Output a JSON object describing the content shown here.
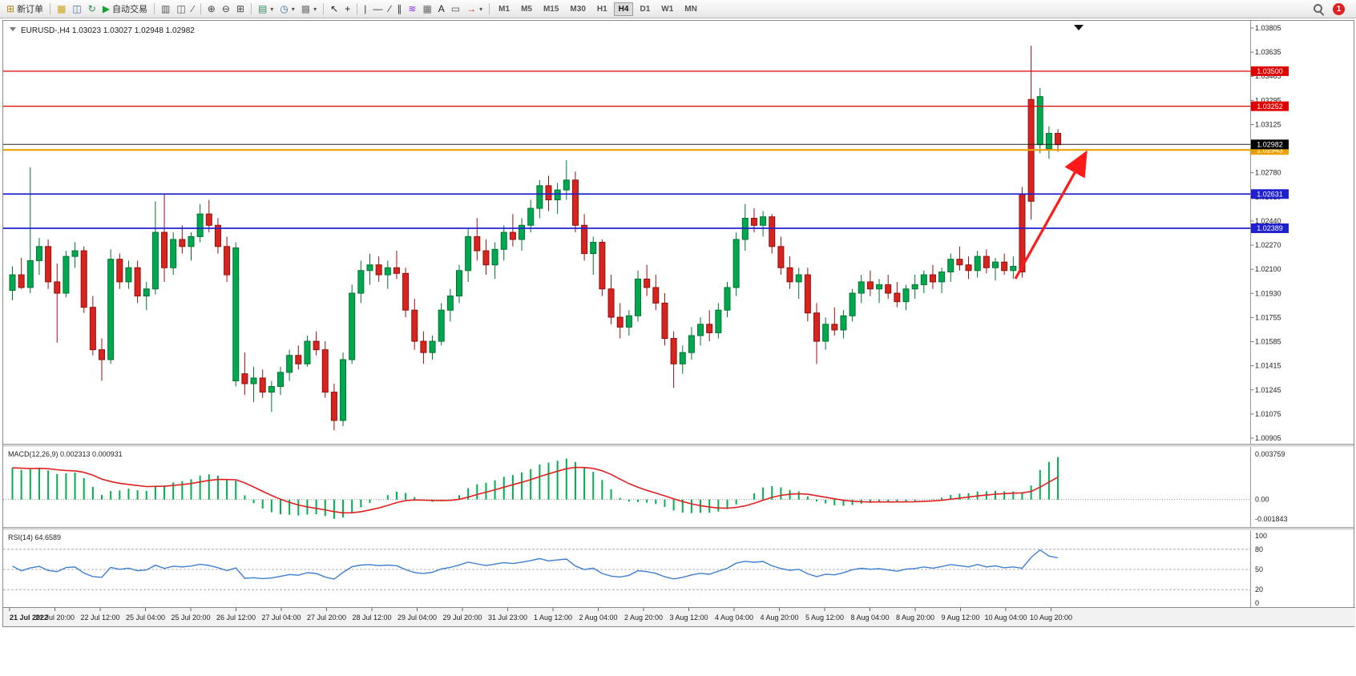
{
  "toolbar": {
    "new_order_label": "新订单",
    "auto_trading_label": "自动交易",
    "notification_count": "1",
    "timeframes": [
      "M1",
      "M5",
      "M15",
      "M30",
      "H1",
      "H4",
      "D1",
      "W1",
      "MN"
    ],
    "active_timeframe": "H4",
    "items": [
      {
        "name": "new-order-button",
        "glyph": "⊞",
        "glyph_color": "#b8860b",
        "label": "新订单"
      },
      {
        "type": "sep"
      },
      {
        "name": "market-watch-button",
        "glyph": "▦",
        "glyph_color": "#c8a415"
      },
      {
        "name": "navigator-button",
        "glyph": "◫",
        "glyph_color": "#4a6fa5"
      },
      {
        "name": "refresh-button",
        "glyph": "↻",
        "glyph_color": "#2e8b57"
      },
      {
        "name": "auto-trading-button",
        "glyph": "▶",
        "glyph_color": "#18a030",
        "label": "自动交易"
      },
      {
        "type": "sep"
      },
      {
        "name": "bar-chart-button",
        "glyph": "▥",
        "glyph_color": "#555555"
      },
      {
        "name": "candlestick-chart-button",
        "glyph": "◫",
        "glyph_color": "#555555"
      },
      {
        "name": "line-chart-button",
        "glyph": "∕",
        "glyph_color": "#555555"
      },
      {
        "type": "sep"
      },
      {
        "name": "zoom-in-button",
        "glyph": "⊕",
        "glyph_color": "#444444"
      },
      {
        "name": "zoom-out-button",
        "glyph": "⊖",
        "glyph_color": "#444444"
      },
      {
        "name": "tile-windows-button",
        "glyph": "⊞",
        "glyph_color": "#444444"
      },
      {
        "type": "sep"
      },
      {
        "name": "new-chart-button",
        "glyph": "▤",
        "glyph_color": "#2e8b57",
        "dropdown": true
      },
      {
        "name": "periods-button",
        "glyph": "◷",
        "glyph_color": "#3a6ea5",
        "dropdown": true
      },
      {
        "name": "templates-button",
        "glyph": "▩",
        "glyph_color": "#777777",
        "dropdown": true
      },
      {
        "type": "sep"
      },
      {
        "name": "cursor-tool-button",
        "glyph": "↖",
        "glyph_color": "#222222"
      },
      {
        "name": "crosshair-tool-button",
        "glyph": "+",
        "glyph_color": "#222222"
      },
      {
        "type": "sep"
      },
      {
        "name": "vertical-line-tool-button",
        "glyph": "|",
        "glyph_color": "#333333"
      },
      {
        "name": "horizontal-line-tool-button",
        "glyph": "—",
        "glyph_color": "#333333"
      },
      {
        "name": "trendline-tool-button",
        "glyph": "∕",
        "glyph_color": "#333333"
      },
      {
        "name": "channel-tool-button",
        "glyph": "∥",
        "glyph_color": "#333333"
      },
      {
        "name": "fibonacci-tool-button",
        "glyph": "≋",
        "glyph_color": "#8a2be2"
      },
      {
        "name": "grid-tool-button",
        "glyph": "▦",
        "glyph_color": "#666666"
      },
      {
        "name": "text-tool-button",
        "glyph": "A",
        "glyph_color": "#222222"
      },
      {
        "name": "label-tool-button",
        "glyph": "▭",
        "glyph_color": "#555555"
      },
      {
        "name": "arrows-tool-button",
        "glyph": "→",
        "glyph_color": "#cc2020",
        "dropdown": true
      },
      {
        "type": "sep"
      },
      {
        "type": "timeframes"
      }
    ]
  },
  "chart": {
    "title": "EURUSD-,H4",
    "ohlc_text": "1.03023 1.03027 1.02948 1.02982"
  },
  "price_axis": {
    "labels": [
      "1.03805",
      "1.03635",
      "1.03465",
      "1.03295",
      "1.03125",
      "1.02955",
      "1.02780",
      "1.02610",
      "1.02440",
      "1.02270",
      "1.02100",
      "1.01930",
      "1.01755",
      "1.01585",
      "1.01415",
      "1.01245",
      "1.01075",
      "1.00905"
    ],
    "max": 1.03805,
    "min": 1.00905
  },
  "levels": [
    {
      "label": "1.03500",
      "value": 1.035,
      "color": "#e00000",
      "width": 1.2
    },
    {
      "label": "1.03252",
      "value": 1.03252,
      "color": "#e00000",
      "width": 1.2
    },
    {
      "label": "1.02943",
      "value": 1.02943,
      "color": "#eca000",
      "width": 2.2
    },
    {
      "label": "1.02631",
      "value": 1.02631,
      "color": "#2020d0",
      "width": 1.8
    },
    {
      "label": "1.02389",
      "value": 1.02389,
      "color": "#2020d0",
      "width": 1.8
    }
  ],
  "current_price": {
    "label": "1.02982",
    "value": 1.02982,
    "color": "#000000"
  },
  "macd": {
    "label": "MACD(12,26,9)",
    "values_text": "0.002313 0.000931",
    "axis_labels": [
      "0.003759",
      "0.00",
      "-0.001843"
    ],
    "range": {
      "max": 0.003759,
      "min": -0.001843
    }
  },
  "rsi": {
    "label": "RSI(14)",
    "value_text": "64.6589",
    "axis_labels": [
      "100",
      "80",
      "50",
      "20",
      "0"
    ],
    "levels": [
      80,
      50,
      20
    ]
  },
  "colors": {
    "bull": "#00a94f",
    "bull_border": "#00732f",
    "bear": "#d9231e",
    "bear_border": "#8f120e",
    "resistance_line": "#e00000",
    "support_line": "#2020d0",
    "alert_line": "#eca000",
    "current_price_line": "#222222",
    "macd_histogram": "#00b050",
    "macd_signal": "#e02020",
    "rsi_line": "#3f7fd0",
    "arrow": "#ff1a1a"
  },
  "chart_data": {
    "type": "candlestick",
    "symbol": "EURUSD-",
    "timeframe": "H4",
    "time_labels": [
      "21 Jul 2022",
      "21 Jul 20:00",
      "22 Jul 12:00",
      "25 Jul 04:00",
      "25 Jul 20:00",
      "26 Jul 12:00",
      "27 Jul 04:00",
      "27 Jul 20:00",
      "28 Jul 12:00",
      "29 Jul 04:00",
      "29 Jul 20:00",
      "31 Jul 23:00",
      "1 Aug 12:00",
      "2 Aug 04:00",
      "2 Aug 20:00",
      "3 Aug 12:00",
      "4 Aug 04:00",
      "4 Aug 20:00",
      "5 Aug 12:00",
      "8 Aug 04:00",
      "8 Aug 20:00",
      "9 Aug 12:00",
      "10 Aug 04:00",
      "10 Aug 20:00"
    ],
    "candles": [
      [
        1.0195,
        1.0212,
        1.0188,
        1.0206
      ],
      [
        1.0206,
        1.0218,
        1.0196,
        1.0197
      ],
      [
        1.0197,
        1.0282,
        1.0193,
        1.0216
      ],
      [
        1.0216,
        1.0232,
        1.0206,
        1.0226
      ],
      [
        1.0226,
        1.0231,
        1.0196,
        1.0201
      ],
      [
        1.0201,
        1.0214,
        1.0158,
        1.0193
      ],
      [
        1.0193,
        1.0223,
        1.019,
        1.0219
      ],
      [
        1.0219,
        1.0229,
        1.0211,
        1.0223
      ],
      [
        1.0223,
        1.0226,
        1.0179,
        1.0183
      ],
      [
        1.0183,
        1.0191,
        1.0149,
        1.0153
      ],
      [
        1.0153,
        1.0161,
        1.0131,
        1.0146
      ],
      [
        1.0146,
        1.0224,
        1.0143,
        1.0217
      ],
      [
        1.0217,
        1.0221,
        1.0196,
        1.0201
      ],
      [
        1.0201,
        1.0216,
        1.0196,
        1.0211
      ],
      [
        1.0211,
        1.0216,
        1.0186,
        1.0191
      ],
      [
        1.0191,
        1.0201,
        1.0181,
        1.0196
      ],
      [
        1.0196,
        1.0258,
        1.0192,
        1.0236
      ],
      [
        1.0236,
        1.0263,
        1.0201,
        1.0211
      ],
      [
        1.0211,
        1.0236,
        1.0206,
        1.0231
      ],
      [
        1.0231,
        1.0241,
        1.0221,
        1.0226
      ],
      [
        1.0226,
        1.0236,
        1.0216,
        1.0233
      ],
      [
        1.0233,
        1.0256,
        1.0229,
        1.0249
      ],
      [
        1.0249,
        1.0259,
        1.0236,
        1.0241
      ],
      [
        1.0241,
        1.0246,
        1.0221,
        1.0226
      ],
      [
        1.0226,
        1.0233,
        1.0201,
        1.0206
      ],
      [
        1.0131,
        1.0229,
        1.0127,
        1.0225
      ],
      [
        1.0136,
        1.0151,
        1.0121,
        1.0129
      ],
      [
        1.0129,
        1.0141,
        1.0116,
        1.0133
      ],
      [
        1.0133,
        1.0139,
        1.0119,
        1.0123
      ],
      [
        1.0123,
        1.0131,
        1.0109,
        1.0127
      ],
      [
        1.0127,
        1.0141,
        1.0121,
        1.0137
      ],
      [
        1.0137,
        1.0153,
        1.0131,
        1.0149
      ],
      [
        1.0149,
        1.0156,
        1.0139,
        1.0143
      ],
      [
        1.0143,
        1.0163,
        1.0141,
        1.0159
      ],
      [
        1.0159,
        1.0166,
        1.0149,
        1.0153
      ],
      [
        1.0153,
        1.0159,
        1.0119,
        1.0123
      ],
      [
        1.0123,
        1.0129,
        1.0096,
        1.0103
      ],
      [
        1.0103,
        1.0151,
        1.0099,
        1.0146
      ],
      [
        1.0146,
        1.0199,
        1.0143,
        1.0193
      ],
      [
        1.0193,
        1.0216,
        1.0186,
        1.0209
      ],
      [
        1.0209,
        1.0221,
        1.0199,
        1.0213
      ],
      [
        1.0213,
        1.0219,
        1.0201,
        1.0206
      ],
      [
        1.0206,
        1.0216,
        1.0196,
        1.0211
      ],
      [
        1.0211,
        1.0223,
        1.0203,
        1.0207
      ],
      [
        1.0207,
        1.0211,
        1.0176,
        1.0181
      ],
      [
        1.0181,
        1.0189,
        1.0153,
        1.0159
      ],
      [
        1.0159,
        1.0166,
        1.0143,
        1.0151
      ],
      [
        1.0151,
        1.0163,
        1.0146,
        1.0159
      ],
      [
        1.0159,
        1.0186,
        1.0156,
        1.0181
      ],
      [
        1.0181,
        1.0196,
        1.0173,
        1.0191
      ],
      [
        1.0191,
        1.0213,
        1.0186,
        1.0209
      ],
      [
        1.0209,
        1.0239,
        1.0201,
        1.0233
      ],
      [
        1.0233,
        1.0246,
        1.0216,
        1.0223
      ],
      [
        1.0223,
        1.0231,
        1.0206,
        1.0213
      ],
      [
        1.0213,
        1.0229,
        1.0203,
        1.0224
      ],
      [
        1.0224,
        1.0241,
        1.0216,
        1.0236
      ],
      [
        1.0236,
        1.0249,
        1.0226,
        1.0231
      ],
      [
        1.0231,
        1.0246,
        1.0223,
        1.0241
      ],
      [
        1.0241,
        1.0259,
        1.0236,
        1.0253
      ],
      [
        1.0253,
        1.0273,
        1.0246,
        1.0269
      ],
      [
        1.0269,
        1.0276,
        1.0251,
        1.0259
      ],
      [
        1.0259,
        1.0271,
        1.0249,
        1.0266
      ],
      [
        1.0266,
        1.0287,
        1.0259,
        1.0273
      ],
      [
        1.0273,
        1.0279,
        1.0236,
        1.0241
      ],
      [
        1.0241,
        1.0249,
        1.0216,
        1.0221
      ],
      [
        1.0221,
        1.0233,
        1.0206,
        1.0229
      ],
      [
        1.0229,
        1.0231,
        1.0191,
        1.0196
      ],
      [
        1.0196,
        1.0206,
        1.0171,
        1.0176
      ],
      [
        1.0176,
        1.0186,
        1.0161,
        1.0169
      ],
      [
        1.0169,
        1.0181,
        1.0163,
        1.0177
      ],
      [
        1.0177,
        1.0209,
        1.0173,
        1.0203
      ],
      [
        1.0203,
        1.0213,
        1.0191,
        1.0197
      ],
      [
        1.0197,
        1.0206,
        1.0181,
        1.0186
      ],
      [
        1.0186,
        1.0193,
        1.0156,
        1.0161
      ],
      [
        1.0161,
        1.0166,
        1.0126,
        1.0143
      ],
      [
        1.0143,
        1.0156,
        1.0136,
        1.0151
      ],
      [
        1.0151,
        1.0169,
        1.0146,
        1.0163
      ],
      [
        1.0163,
        1.0176,
        1.0156,
        1.0171
      ],
      [
        1.0171,
        1.0181,
        1.0159,
        1.0165
      ],
      [
        1.0165,
        1.0186,
        1.0161,
        1.0181
      ],
      [
        1.0181,
        1.0201,
        1.0176,
        1.0197
      ],
      [
        1.0197,
        1.0236,
        1.0191,
        1.0231
      ],
      [
        1.0231,
        1.0256,
        1.0223,
        1.0246
      ],
      [
        1.0246,
        1.0253,
        1.0236,
        1.0241
      ],
      [
        1.0241,
        1.0251,
        1.0233,
        1.0247
      ],
      [
        1.0247,
        1.0249,
        1.0221,
        1.0226
      ],
      [
        1.0226,
        1.0233,
        1.0206,
        1.0211
      ],
      [
        1.0211,
        1.0219,
        1.0196,
        1.0201
      ],
      [
        1.0201,
        1.0211,
        1.0189,
        1.0206
      ],
      [
        1.0206,
        1.0211,
        1.0173,
        1.0179
      ],
      [
        1.0179,
        1.0186,
        1.0143,
        1.0159
      ],
      [
        1.0159,
        1.0176,
        1.0153,
        1.0171
      ],
      [
        1.0171,
        1.0183,
        1.0163,
        1.0167
      ],
      [
        1.0167,
        1.0181,
        1.0161,
        1.0177
      ],
      [
        1.0177,
        1.0196,
        1.0173,
        1.0193
      ],
      [
        1.0193,
        1.0206,
        1.0186,
        1.0201
      ],
      [
        1.0201,
        1.0209,
        1.0191,
        1.0196
      ],
      [
        1.0196,
        1.0203,
        1.0186,
        1.0199
      ],
      [
        1.0199,
        1.0206,
        1.0189,
        1.0193
      ],
      [
        1.0193,
        1.0201,
        1.0183,
        1.0187
      ],
      [
        1.0187,
        1.0199,
        1.0181,
        1.0196
      ],
      [
        1.0196,
        1.0206,
        1.0189,
        1.0199
      ],
      [
        1.0199,
        1.0209,
        1.0193,
        1.0206
      ],
      [
        1.0206,
        1.0213,
        1.0196,
        1.0201
      ],
      [
        1.0201,
        1.0211,
        1.0193,
        1.0208
      ],
      [
        1.0208,
        1.0221,
        1.0201,
        1.0217
      ],
      [
        1.0217,
        1.0226,
        1.0209,
        1.0213
      ],
      [
        1.0213,
        1.0219,
        1.0203,
        1.0209
      ],
      [
        1.0209,
        1.0223,
        1.0204,
        1.0219
      ],
      [
        1.0219,
        1.0224,
        1.0207,
        1.0211
      ],
      [
        1.0211,
        1.0218,
        1.0202,
        1.0215
      ],
      [
        1.0215,
        1.0221,
        1.0206,
        1.0209
      ],
      [
        1.0209,
        1.0219,
        1.0203,
        1.0212
      ],
      [
        1.0263,
        1.0268,
        1.0204,
        1.0208
      ],
      [
        1.033,
        1.0368,
        1.0245,
        1.0258
      ],
      [
        1.0298,
        1.0338,
        1.0292,
        1.0332
      ],
      [
        1.0295,
        1.0311,
        1.0288,
        1.0306
      ],
      [
        1.0306,
        1.0309,
        1.0293,
        1.0298
      ]
    ]
  }
}
